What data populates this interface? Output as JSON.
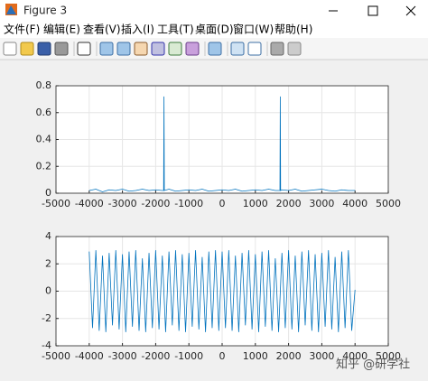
{
  "window": {
    "title": "Figure 3"
  },
  "menu": [
    "文件(F)",
    "编辑(E)",
    "查看(V)",
    "插入(I)",
    "工具(T)",
    "桌面(D)",
    "窗口(W)",
    "帮助(H)"
  ],
  "watermark": "知乎 @研学社",
  "chart_data": [
    {
      "type": "line",
      "color": "#0072bd",
      "grid": true,
      "x": [
        -4000,
        -3800,
        -3600,
        -3400,
        -3200,
        -3000,
        -2800,
        -2600,
        -2400,
        -2200,
        -2000,
        -1800,
        -1760,
        -1750,
        -1740,
        -1600,
        -1400,
        -1200,
        -1000,
        -800,
        -600,
        -400,
        -200,
        0,
        200,
        400,
        600,
        800,
        1000,
        1200,
        1400,
        1600,
        1740,
        1750,
        1760,
        1800,
        2000,
        2200,
        2400,
        2600,
        2800,
        3000,
        3200,
        3400,
        3600,
        3800,
        4000
      ],
      "values": [
        0.02,
        0.03,
        0.01,
        0.025,
        0.02,
        0.03,
        0.015,
        0.02,
        0.03,
        0.02,
        0.025,
        0.02,
        0.02,
        0.72,
        0.02,
        0.03,
        0.015,
        0.02,
        0.025,
        0.02,
        0.03,
        0.015,
        0.02,
        0.025,
        0.02,
        0.03,
        0.015,
        0.02,
        0.025,
        0.02,
        0.03,
        0.02,
        0.02,
        0.72,
        0.02,
        0.025,
        0.02,
        0.03,
        0.015,
        0.02,
        0.025,
        0.03,
        0.02,
        0.015,
        0.025,
        0.02,
        0.02
      ],
      "xlim": [
        -5000,
        5000
      ],
      "xticks": [
        -5000,
        -4000,
        -3000,
        -2000,
        -1000,
        0,
        1000,
        2000,
        3000,
        4000,
        5000
      ],
      "ylim": [
        0,
        0.8
      ],
      "yticks": [
        0,
        0.2,
        0.4,
        0.6,
        0.8
      ]
    },
    {
      "type": "line",
      "color": "#0072bd",
      "grid": true,
      "x": [
        -4000,
        -3900,
        -3800,
        -3700,
        -3600,
        -3500,
        -3400,
        -3300,
        -3200,
        -3100,
        -3000,
        -2900,
        -2800,
        -2700,
        -2600,
        -2500,
        -2400,
        -2300,
        -2200,
        -2100,
        -2000,
        -1900,
        -1800,
        -1700,
        -1600,
        -1500,
        -1400,
        -1300,
        -1200,
        -1100,
        -1000,
        -900,
        -800,
        -700,
        -600,
        -500,
        -400,
        -300,
        -200,
        -100,
        0,
        100,
        200,
        300,
        400,
        500,
        600,
        700,
        800,
        900,
        1000,
        1100,
        1200,
        1300,
        1400,
        1500,
        1600,
        1700,
        1800,
        1900,
        2000,
        2100,
        2200,
        2300,
        2400,
        2500,
        2600,
        2700,
        2800,
        2900,
        3000,
        3100,
        3200,
        3300,
        3400,
        3500,
        3600,
        3700,
        3800,
        3900,
        4000
      ],
      "values": [
        2.9,
        -2.7,
        3.0,
        -2.9,
        2.6,
        -3.0,
        2.8,
        -2.5,
        3.0,
        -2.8,
        2.7,
        -3.0,
        2.9,
        -2.6,
        3.0,
        -2.9,
        2.4,
        -3.0,
        2.8,
        -2.7,
        3.0,
        -2.8,
        2.6,
        -3.0,
        2.9,
        -2.5,
        3.0,
        -2.9,
        2.7,
        -3.0,
        2.8,
        -2.6,
        3.0,
        -2.8,
        2.5,
        -3.0,
        2.9,
        -2.7,
        3.0,
        -2.9,
        2.9,
        -2.7,
        3.0,
        -2.9,
        2.6,
        -3.0,
        2.8,
        -2.5,
        3.0,
        -2.8,
        2.7,
        -3.0,
        2.9,
        -2.6,
        3.0,
        -2.9,
        2.4,
        -3.0,
        2.8,
        -2.7,
        3.0,
        -2.8,
        2.6,
        -3.0,
        2.9,
        -2.5,
        3.0,
        -2.9,
        2.7,
        -3.0,
        2.8,
        -2.6,
        3.0,
        -2.8,
        2.5,
        -3.0,
        2.9,
        -2.7,
        3.0,
        -2.9,
        0.1
      ],
      "xlim": [
        -5000,
        5000
      ],
      "xticks": [
        -5000,
        -4000,
        -3000,
        -2000,
        -1000,
        0,
        1000,
        2000,
        3000,
        4000,
        5000
      ],
      "ylim": [
        -4,
        4
      ],
      "yticks": [
        -4,
        -2,
        0,
        2,
        4
      ]
    }
  ]
}
